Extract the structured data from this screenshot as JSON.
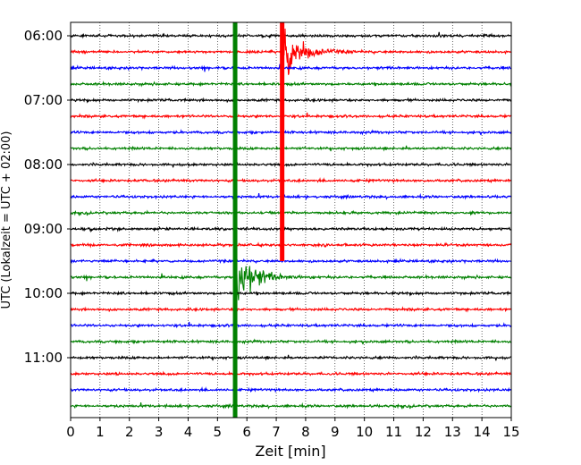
{
  "chart_data": {
    "type": "line",
    "title": "",
    "xlabel": "Zeit  [min]",
    "ylabel": "UTC (Lokalzeit = UTC + 02:00)",
    "xlim": [
      0,
      15
    ],
    "ylim": [
      "05:45",
      "11:45"
    ],
    "x_ticks": [
      "0",
      "1",
      "2",
      "3",
      "4",
      "5",
      "6",
      "7",
      "8",
      "9",
      "10",
      "11",
      "12",
      "13",
      "14",
      "15"
    ],
    "y_ticks": [
      "06:00",
      "07:00",
      "08:00",
      "09:00",
      "10:00",
      "11:00"
    ],
    "grid": "vertical dotted at each minute",
    "trace_start": "06:00",
    "trace_interval_minutes": 15,
    "trace_count": 24,
    "trace_colors": [
      "#000000",
      "#ff0000",
      "#0000ff",
      "#008000"
    ],
    "series": [
      {
        "start": "06:00"
      },
      {
        "start": "06:15"
      },
      {
        "start": "06:30"
      },
      {
        "start": "06:45"
      },
      {
        "start": "07:00"
      },
      {
        "start": "07:15"
      },
      {
        "start": "07:30"
      },
      {
        "start": "07:45"
      },
      {
        "start": "08:00"
      },
      {
        "start": "08:15"
      },
      {
        "start": "08:30"
      },
      {
        "start": "08:45"
      },
      {
        "start": "09:00"
      },
      {
        "start": "09:15"
      },
      {
        "start": "09:30"
      },
      {
        "start": "09:45"
      },
      {
        "start": "10:00"
      },
      {
        "start": "10:15"
      },
      {
        "start": "10:30"
      },
      {
        "start": "10:45"
      },
      {
        "start": "11:00"
      },
      {
        "start": "11:15"
      },
      {
        "start": "11:30"
      },
      {
        "start": "11:45"
      }
    ],
    "events": [
      {
        "trace": 1,
        "minute": 7.2,
        "amplitude": "high",
        "description_visible": false
      },
      {
        "trace": 15,
        "minute": 5.6,
        "amplitude": "high",
        "description_visible": false
      }
    ]
  }
}
